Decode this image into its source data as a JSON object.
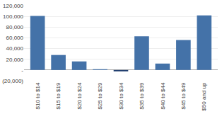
{
  "chart_data": {
    "type": "bar",
    "categories": [
      "$10 to $14",
      "$15 to $19",
      "$20 to $24",
      "$25 to $29",
      "$30 to $34",
      "$35 to $39",
      "$40 to $44",
      "$45 to $49",
      "$50 and up"
    ],
    "values": [
      101000,
      28000,
      16000,
      1500,
      -2500,
      63000,
      12000,
      56000,
      102000
    ],
    "colors": [
      "#4472a8",
      "#4472a8",
      "#4472a8",
      "#4472a8",
      "#1f3d6e",
      "#4472a8",
      "#4472a8",
      "#4472a8",
      "#4472a8"
    ],
    "ylim": [
      -20000,
      120000
    ],
    "yticks": [
      {
        "value": -20000,
        "label": "(20,000)"
      },
      {
        "value": 0,
        "label": "-"
      },
      {
        "value": 20000,
        "label": "20,000"
      },
      {
        "value": 40000,
        "label": "40,000"
      },
      {
        "value": 60000,
        "label": "60,000"
      },
      {
        "value": 80000,
        "label": "80,000"
      },
      {
        "value": 100000,
        "label": "100,000"
      },
      {
        "value": 120000,
        "label": "120,000"
      }
    ],
    "grid": true
  }
}
